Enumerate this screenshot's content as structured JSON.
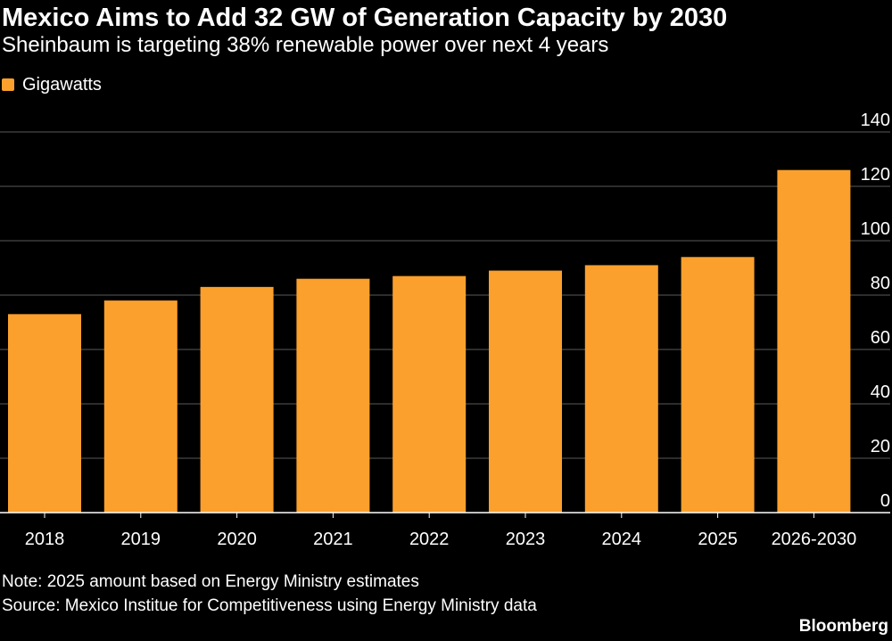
{
  "colors": {
    "background": "#000000",
    "bar": "#FBA02C",
    "text": "#FFFFFF",
    "grid": "#5A5A5A"
  },
  "chart_data": {
    "type": "bar",
    "title": "Mexico Aims to Add 32 GW of Generation Capacity by 2030",
    "subtitle": "Sheinbaum is targeting 38% renewable power over next 4 years",
    "categories": [
      "2018",
      "2019",
      "2020",
      "2021",
      "2022",
      "2023",
      "2024",
      "2025",
      "2026-2030"
    ],
    "series": [
      {
        "name": "Gigawatts",
        "values": [
          73,
          78,
          83,
          86,
          87,
          89,
          91,
          94,
          126
        ]
      }
    ],
    "ylim": [
      0,
      140
    ],
    "yticks": [
      0,
      20,
      40,
      60,
      80,
      100,
      120,
      140
    ],
    "y_axis_side": "right",
    "grid": true,
    "legend_position": "top-left"
  },
  "footer": {
    "note": "Note: 2025 amount based on Energy Ministry estimates",
    "source": "Source: Mexico Institue for Competitiveness using Energy Ministry data",
    "brand": "Bloomberg"
  }
}
